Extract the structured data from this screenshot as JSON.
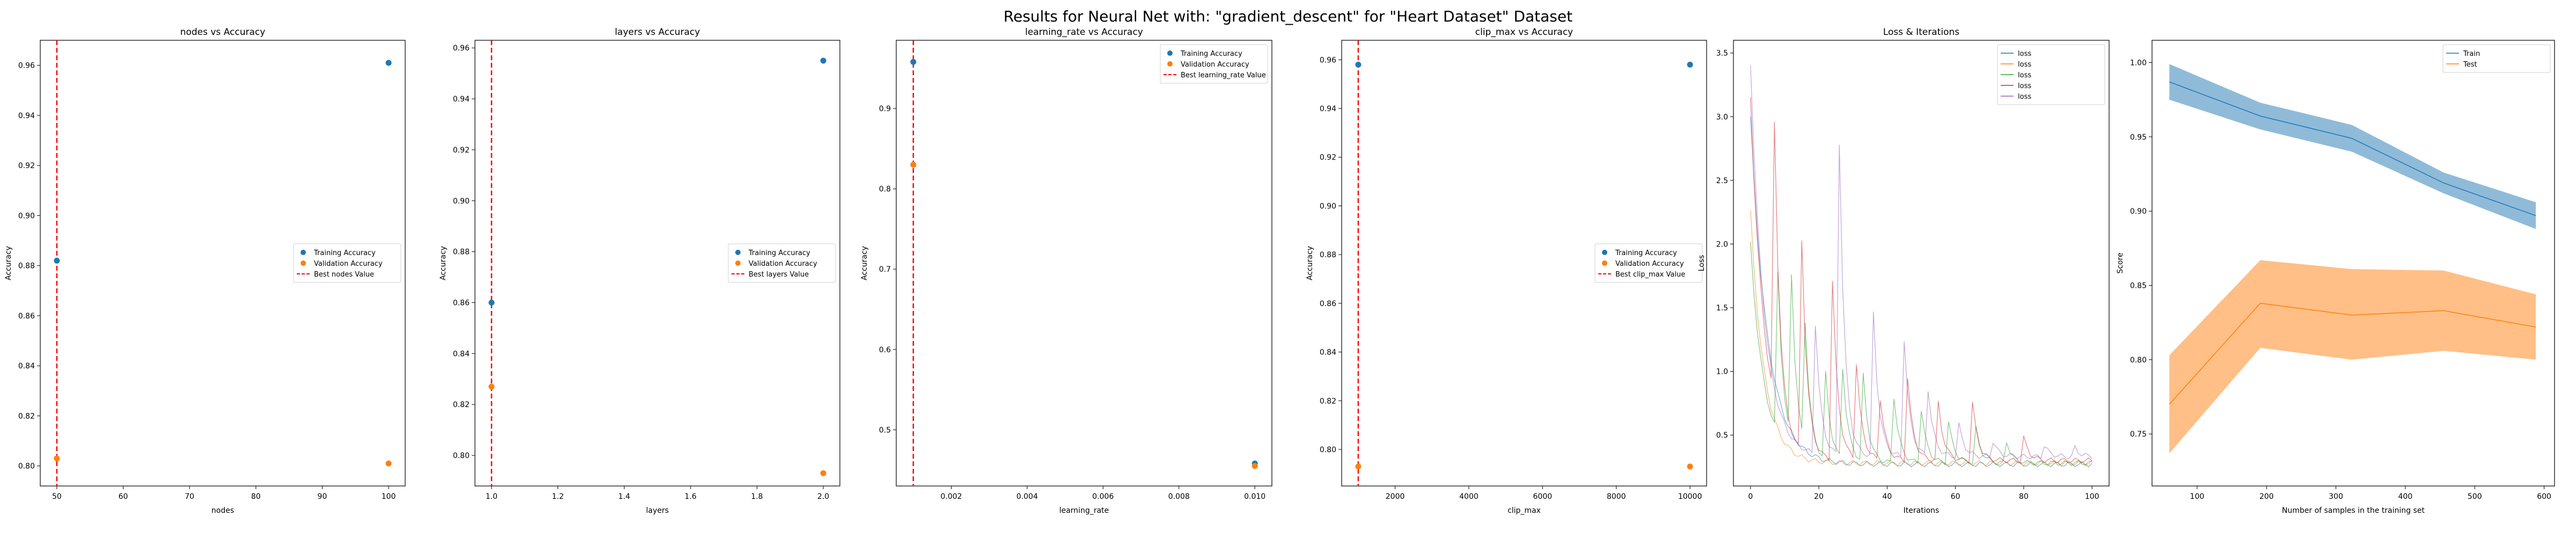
{
  "suptitle": "Results for Neural Net with: \"gradient_descent\" for \"Heart Dataset\" Dataset",
  "colors": {
    "train": "#1f77b4",
    "validation": "#ff7f0e",
    "best": "#ff0000"
  },
  "chart_data": [
    {
      "type": "scatter",
      "title": "nodes vs Accuracy",
      "xlabel": "nodes",
      "ylabel": "Accuracy",
      "xlim": [
        47.5,
        102.5
      ],
      "ylim": [
        0.792,
        0.97
      ],
      "xticks": [
        50,
        60,
        70,
        80,
        90,
        100
      ],
      "yticks": [
        0.8,
        0.82,
        0.84,
        0.86,
        0.88,
        0.9,
        0.92,
        0.94,
        0.96
      ],
      "ytick_decimals": 2,
      "series": [
        {
          "name": "Training Accuracy",
          "x": [
            50,
            100
          ],
          "y": [
            0.882,
            0.961
          ]
        },
        {
          "name": "Validation Accuracy",
          "x": [
            50,
            100
          ],
          "y": [
            0.803,
            0.801
          ]
        }
      ],
      "best_value": {
        "name": "Best nodes Value",
        "x": 50
      },
      "legend": "center-right"
    },
    {
      "type": "scatter",
      "title": "layers vs Accuracy",
      "xlabel": "layers",
      "ylabel": "Accuracy",
      "xlim": [
        0.95,
        2.05
      ],
      "ylim": [
        0.788,
        0.963
      ],
      "xticks": [
        1.0,
        1.2,
        1.4,
        1.6,
        1.8,
        2.0
      ],
      "yticks": [
        0.8,
        0.82,
        0.84,
        0.86,
        0.88,
        0.9,
        0.92,
        0.94,
        0.96
      ],
      "ytick_decimals": 2,
      "xtick_decimals": 1,
      "series": [
        {
          "name": "Training Accuracy",
          "x": [
            1.0,
            2.0
          ],
          "y": [
            0.86,
            0.955
          ]
        },
        {
          "name": "Validation Accuracy",
          "x": [
            1.0,
            2.0
          ],
          "y": [
            0.827,
            0.793
          ]
        }
      ],
      "best_value": {
        "name": "Best layers Value",
        "x": 1.0
      },
      "legend": "center-right"
    },
    {
      "type": "scatter",
      "title": "learning_rate vs Accuracy",
      "xlabel": "learning_rate",
      "ylabel": "Accuracy",
      "xlim": [
        0.00055,
        0.01045
      ],
      "ylim": [
        0.43,
        0.985
      ],
      "xticks": [
        0.002,
        0.004,
        0.006,
        0.008,
        0.01
      ],
      "yticks": [
        0.5,
        0.6,
        0.7,
        0.8,
        0.9
      ],
      "ytick_decimals": 1,
      "xtick_decimals": 3,
      "series": [
        {
          "name": "Training Accuracy",
          "x": [
            0.001,
            0.01
          ],
          "y": [
            0.958,
            0.458
          ]
        },
        {
          "name": "Validation Accuracy",
          "x": [
            0.001,
            0.01
          ],
          "y": [
            0.83,
            0.455
          ]
        }
      ],
      "best_value": {
        "name": "Best learning_rate Value",
        "x": 0.001
      },
      "legend": "top-right"
    },
    {
      "type": "scatter",
      "title": "clip_max vs Accuracy",
      "xlabel": "clip_max",
      "ylabel": "Accuracy",
      "xlim": [
        550,
        10450
      ],
      "ylim": [
        0.785,
        0.968
      ],
      "xticks": [
        2000,
        4000,
        6000,
        8000,
        10000
      ],
      "yticks": [
        0.8,
        0.82,
        0.84,
        0.86,
        0.88,
        0.9,
        0.92,
        0.94,
        0.96
      ],
      "ytick_decimals": 2,
      "series": [
        {
          "name": "Training Accuracy",
          "x": [
            1000,
            10000
          ],
          "y": [
            0.958,
            0.958
          ]
        },
        {
          "name": "Validation Accuracy",
          "x": [
            1000,
            10000
          ],
          "y": [
            0.793,
            0.793
          ]
        }
      ],
      "best_value": {
        "name": "Best clip_max Value",
        "x": 1000
      },
      "legend": "center-right"
    },
    {
      "type": "line",
      "title": "Loss & Iterations",
      "xlabel": "Iterations",
      "ylabel": "Loss",
      "xlim": [
        -5,
        105
      ],
      "ylim": [
        0.1,
        3.6
      ],
      "xticks": [
        0,
        20,
        40,
        60,
        80,
        100
      ],
      "yticks": [
        0.5,
        1.0,
        1.5,
        2.0,
        2.5,
        3.0,
        3.5
      ],
      "ytick_decimals": 1,
      "legend": "top-right",
      "series": [
        {
          "name": "loss",
          "color": "#1f77b4",
          "spikes": [],
          "start": 3.0,
          "tail": 0.27,
          "decay": 5
        },
        {
          "name": "loss",
          "color": "#ff7f0e",
          "spikes": [],
          "start": 2.25,
          "tail": 0.28,
          "decay": 4
        },
        {
          "name": "loss",
          "color": "#2ca02c",
          "spikes": [
            [
              8,
              1.55
            ],
            [
              12,
              1.58
            ],
            [
              16,
              1.25
            ],
            [
              22,
              0.95
            ],
            [
              27,
              1.0
            ],
            [
              33,
              0.95
            ],
            [
              42,
              0.8
            ],
            [
              50,
              0.7
            ],
            [
              58,
              0.6
            ],
            [
              66,
              0.55
            ],
            [
              75,
              0.45
            ]
          ],
          "start": 2.0,
          "tail": 0.28,
          "decay": 4
        },
        {
          "name": "loss",
          "color": "#d62728",
          "spikes": [
            [
              7,
              2.45
            ],
            [
              15,
              1.95
            ],
            [
              24,
              1.7
            ],
            [
              31,
              1.05
            ],
            [
              38,
              0.78
            ],
            [
              46,
              0.95
            ],
            [
              55,
              0.75
            ],
            [
              65,
              0.75
            ],
            [
              80,
              0.48
            ]
          ],
          "start": 3.15,
          "tail": 0.3,
          "decay": 4
        },
        {
          "name": "loss",
          "color": "#9467bd",
          "spikes": [
            [
              19,
              1.35
            ],
            [
              26,
              2.78
            ],
            [
              36,
              1.45
            ],
            [
              45,
              1.25
            ],
            [
              52,
              0.85
            ],
            [
              61,
              0.58
            ],
            [
              71,
              0.45
            ],
            [
              86,
              0.42
            ],
            [
              95,
              0.4
            ]
          ],
          "start": 3.42,
          "tail": 0.33,
          "decay": 4
        }
      ]
    },
    {
      "type": "area",
      "title": "",
      "xlabel": "Number of samples in the training set",
      "ylabel": "Score",
      "xlim": [
        35,
        615
      ],
      "ylim": [
        0.715,
        1.015
      ],
      "xticks": [
        100,
        200,
        300,
        400,
        500,
        600
      ],
      "yticks": [
        0.75,
        0.8,
        0.85,
        0.9,
        0.95,
        1.0
      ],
      "ytick_decimals": 2,
      "legend": "top-right",
      "x": [
        60,
        191,
        323,
        455,
        588
      ],
      "series": [
        {
          "name": "Train",
          "color": "#1f77b4",
          "values": [
            0.987,
            0.964,
            0.949,
            0.919,
            0.897
          ],
          "lower": [
            0.975,
            0.955,
            0.94,
            0.912,
            0.888
          ],
          "upper": [
            0.999,
            0.973,
            0.958,
            0.926,
            0.906
          ]
        },
        {
          "name": "Test",
          "color": "#ff7f0e",
          "values": [
            0.77,
            0.838,
            0.83,
            0.833,
            0.822
          ],
          "lower": [
            0.737,
            0.808,
            0.8,
            0.806,
            0.8
          ],
          "upper": [
            0.803,
            0.867,
            0.861,
            0.86,
            0.844
          ]
        }
      ]
    }
  ]
}
